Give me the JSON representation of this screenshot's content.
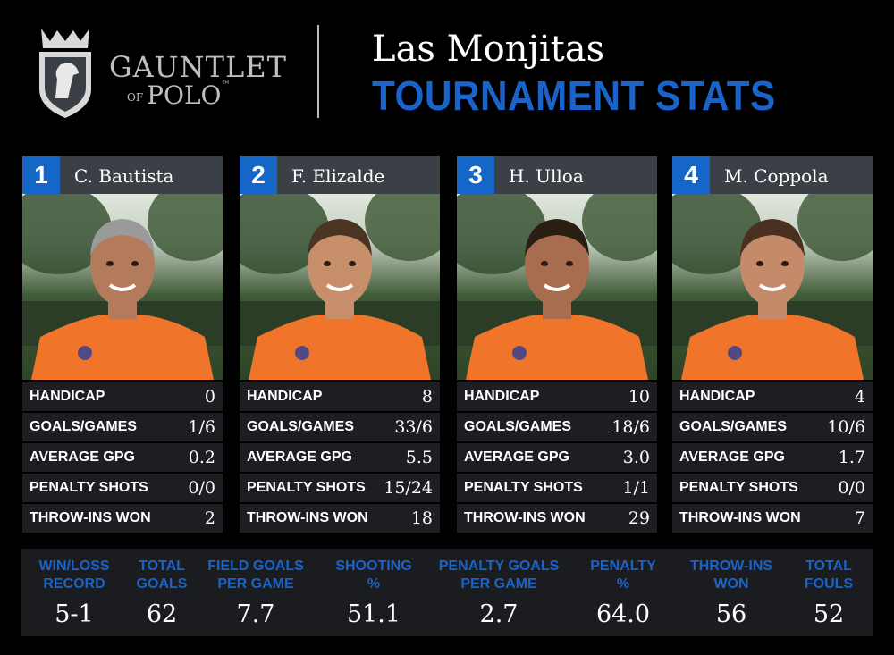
{
  "brand": {
    "line1": "GAUNTLET",
    "line2_small": "OF",
    "line2": "POLO",
    "tm": "™"
  },
  "title": {
    "team": "Las Monjitas",
    "subtitle": "TOURNAMENT STATS"
  },
  "colors": {
    "accent": "#1666c8",
    "jersey": "#f0742a",
    "panel": "#1c1e21",
    "header_bar": "#3b4046"
  },
  "players": [
    {
      "rank": "1",
      "name": "C. Bautista",
      "stats": [
        {
          "label": "HANDICAP",
          "value": "0"
        },
        {
          "label": "GOALS/GAMES",
          "value": "1/6"
        },
        {
          "label": "AVERAGE GPG",
          "value": "0.2"
        },
        {
          "label": "PENALTY SHOTS",
          "value": "0/0"
        },
        {
          "label": "THROW-INS WON",
          "value": "2"
        }
      ]
    },
    {
      "rank": "2",
      "name": "F. Elizalde",
      "stats": [
        {
          "label": "HANDICAP",
          "value": "8"
        },
        {
          "label": "GOALS/GAMES",
          "value": "33/6"
        },
        {
          "label": "AVERAGE GPG",
          "value": "5.5"
        },
        {
          "label": "PENALTY SHOTS",
          "value": "15/24"
        },
        {
          "label": "THROW-INS WON",
          "value": "18"
        }
      ]
    },
    {
      "rank": "3",
      "name": "H. Ulloa",
      "stats": [
        {
          "label": "HANDICAP",
          "value": "10"
        },
        {
          "label": "GOALS/GAMES",
          "value": "18/6"
        },
        {
          "label": "AVERAGE GPG",
          "value": "3.0"
        },
        {
          "label": "PENALTY SHOTS",
          "value": "1/1"
        },
        {
          "label": "THROW-INS WON",
          "value": "29"
        }
      ]
    },
    {
      "rank": "4",
      "name": "M. Coppola",
      "stats": [
        {
          "label": "HANDICAP",
          "value": "4"
        },
        {
          "label": "GOALS/GAMES",
          "value": "10/6"
        },
        {
          "label": "AVERAGE GPG",
          "value": "1.7"
        },
        {
          "label": "PENALTY SHOTS",
          "value": "0/0"
        },
        {
          "label": "THROW-INS WON",
          "value": "7"
        }
      ]
    }
  ],
  "summary": [
    {
      "label_line1": "WIN/LOSS",
      "label_line2": "RECORD",
      "value": "5-1"
    },
    {
      "label_line1": "TOTAL",
      "label_line2": "GOALS",
      "value": "62"
    },
    {
      "label_line1": "FIELD GOALS",
      "label_line2": "PER GAME",
      "value": "7.7"
    },
    {
      "label_line1": "SHOOTING",
      "label_line2": "%",
      "value": "51.1"
    },
    {
      "label_line1": "PENALTY GOALS",
      "label_line2": "PER GAME",
      "value": "2.7"
    },
    {
      "label_line1": "PENALTY",
      "label_line2": "%",
      "value": "64.0"
    },
    {
      "label_line1": "THROW-INS",
      "label_line2": "WON",
      "value": "56"
    },
    {
      "label_line1": "TOTAL",
      "label_line2": "FOULS",
      "value": "52"
    }
  ]
}
